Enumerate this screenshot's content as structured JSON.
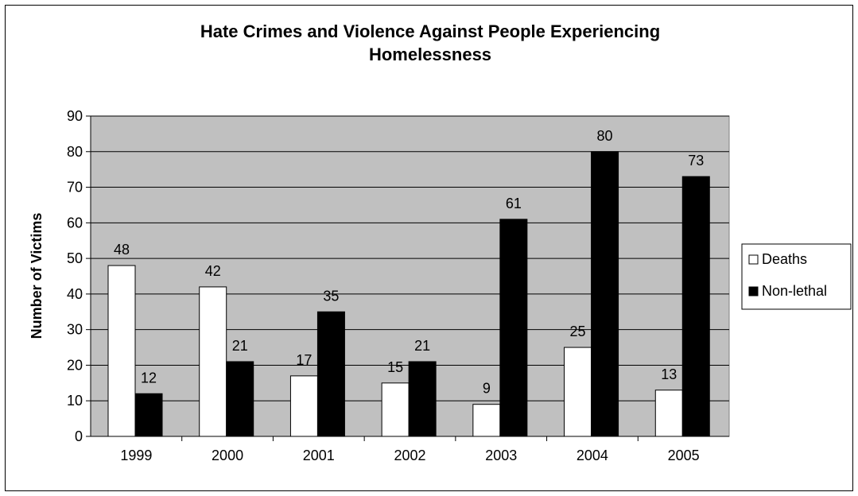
{
  "chart_data": {
    "type": "bar",
    "title_line1": "Hate Crimes and Violence Against People Experiencing",
    "title_line2": "Homelessness",
    "xlabel": "",
    "ylabel": "Number of Victims",
    "categories": [
      "1999",
      "2000",
      "2001",
      "2002",
      "2003",
      "2004",
      "2005"
    ],
    "series": [
      {
        "name": "Deaths",
        "values": [
          48,
          42,
          17,
          15,
          9,
          25,
          13
        ],
        "color": "#ffffff"
      },
      {
        "name": "Non-lethal",
        "values": [
          12,
          21,
          35,
          21,
          61,
          80,
          73
        ],
        "color": "#000000"
      }
    ],
    "ylim": [
      0,
      90
    ],
    "yticks": [
      "0",
      "10",
      "20",
      "30",
      "40",
      "50",
      "60",
      "70",
      "80",
      "90"
    ],
    "grid": true,
    "plot_background": "#c0c0c0",
    "legend_position": "right"
  }
}
